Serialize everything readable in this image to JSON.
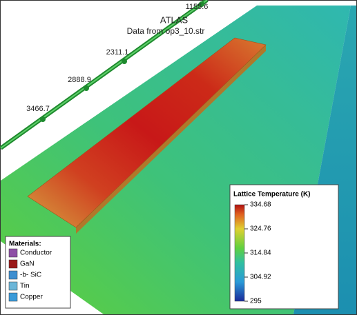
{
  "header": {
    "title": "ATLAS",
    "subtitle": "Data from op3_10.str"
  },
  "axis_labels": [
    "3466.7",
    "2888.9",
    "2311.1",
    "1155.6"
  ],
  "materials": {
    "title": "Materials:",
    "items": [
      {
        "label": "Conductor",
        "color": "#8e4fa6"
      },
      {
        "label": "GaN",
        "color": "#9b1a1a"
      },
      {
        "label": "-b- SiC",
        "color": "#3f8fd0"
      },
      {
        "label": "Tin",
        "color": "#6cb6d8"
      },
      {
        "label": "Copper",
        "color": "#3a9ad9"
      }
    ]
  },
  "colorbar": {
    "title": "Lattice Temperature (K)",
    "ticks": [
      "334.68",
      "324.76",
      "314.84",
      "304.92",
      "295"
    ]
  }
}
